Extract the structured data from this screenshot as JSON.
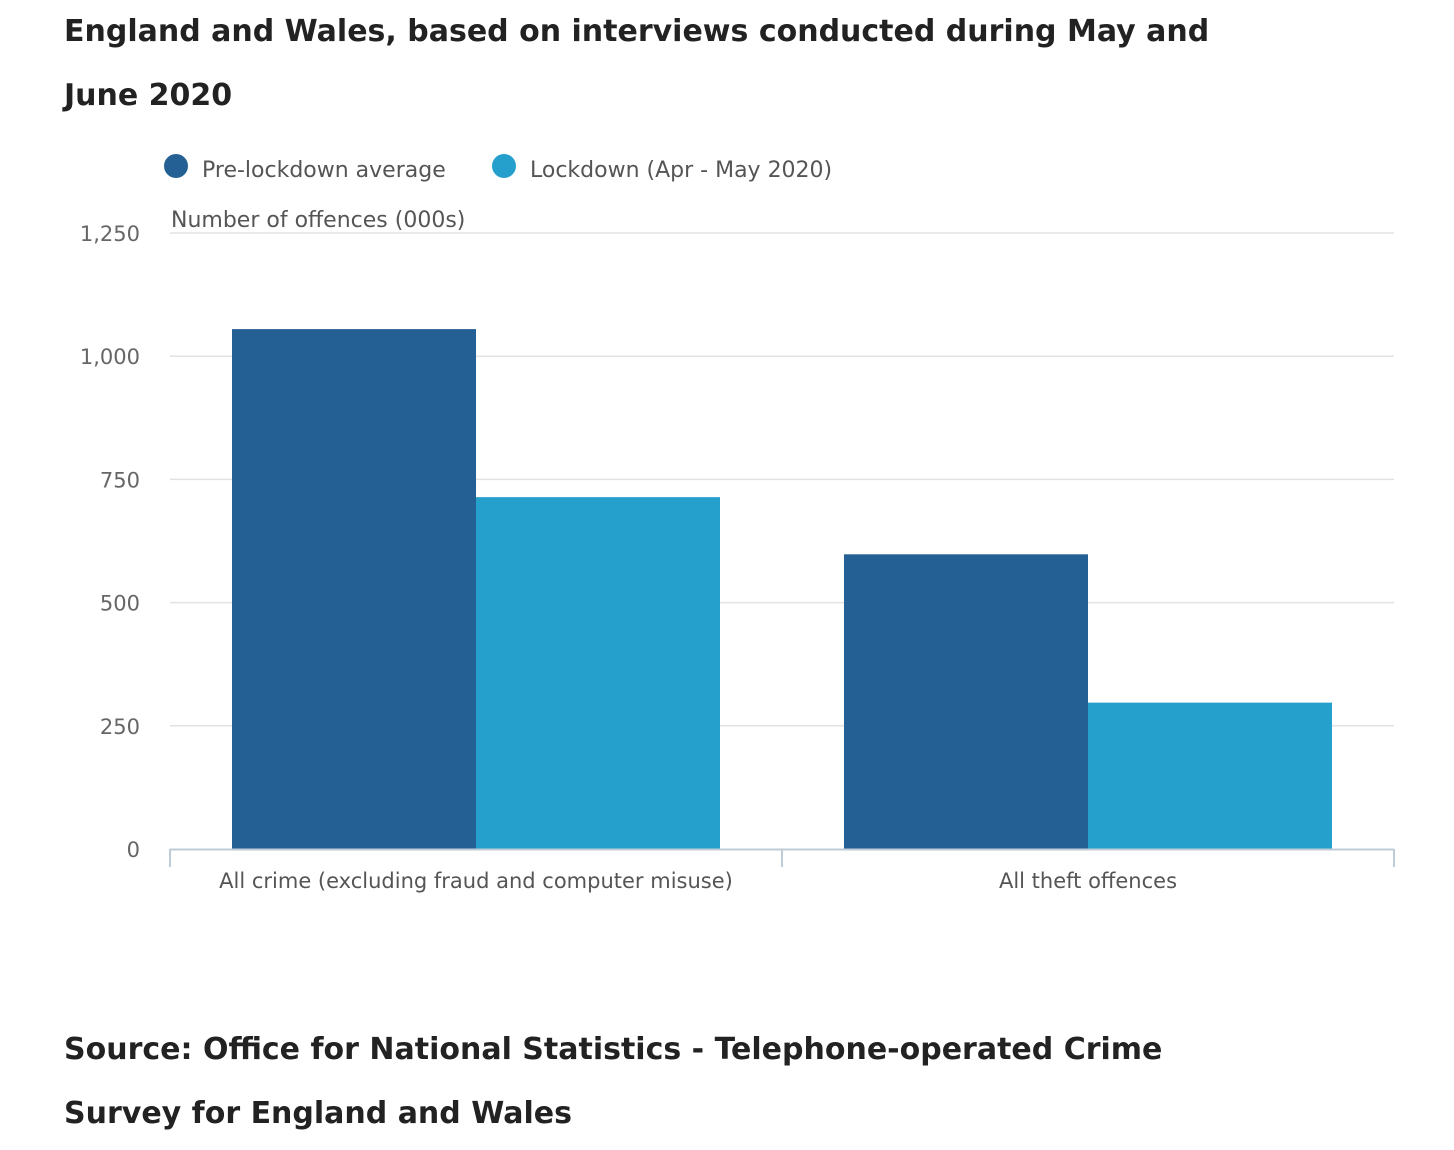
{
  "subtitle": "England and Wales, based on interviews conducted during May and June 2020",
  "source": "Source: Office for National Statistics - Telephone-operated Crime Survey for England and Wales",
  "colors": {
    "pre_lockdown": "#246094",
    "lockdown": "#25a0cd",
    "grid": "#e2e2e3",
    "axis": "#c0cbd8",
    "tick_text": "#666666",
    "label_text": "#555555"
  },
  "chart_data": {
    "type": "bar",
    "ylabel": "Number of offences (000s)",
    "xlabel": "",
    "ylim": [
      0,
      1250
    ],
    "yticks": [
      0,
      250,
      500,
      750,
      1000,
      1250
    ],
    "ytick_labels": [
      "0",
      "250",
      "500",
      "750",
      "1,000",
      "1,250"
    ],
    "grid": true,
    "legend_position": "top-left",
    "categories": [
      "All crime (excluding fraud and computer misuse)",
      "All theft offences"
    ],
    "series": [
      {
        "name": "Pre-lockdown average",
        "color": "#246094",
        "values": [
          1055,
          598
        ]
      },
      {
        "name": "Lockdown (Apr - May 2020)",
        "color": "#25a0cd",
        "values": [
          714,
          297
        ]
      }
    ]
  }
}
